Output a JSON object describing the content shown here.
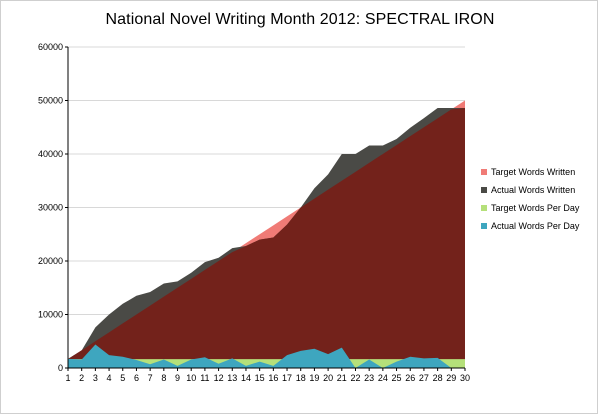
{
  "chart_data": {
    "type": "area",
    "title": "National Novel Writing Month 2012: SPECTRAL IRON",
    "xlabel": "",
    "ylabel": "",
    "x": [
      1,
      2,
      3,
      4,
      5,
      6,
      7,
      8,
      9,
      10,
      11,
      12,
      13,
      14,
      15,
      16,
      17,
      18,
      19,
      20,
      21,
      22,
      23,
      24,
      25,
      26,
      27,
      28,
      29,
      30
    ],
    "ylim": [
      0,
      60000
    ],
    "yticks": [
      0,
      10000,
      20000,
      30000,
      40000,
      50000,
      60000
    ],
    "ytick_labels": [
      "0",
      "10000",
      "20000",
      "30000",
      "40000",
      "50000",
      "60000"
    ],
    "legend_position": "right",
    "grid": true,
    "series": [
      {
        "name": "Target Words Written",
        "color": "#f07b76",
        "values": [
          1667,
          3333,
          5000,
          6667,
          8333,
          10000,
          11667,
          13333,
          15000,
          16667,
          18333,
          20000,
          21667,
          23333,
          25000,
          26667,
          28333,
          30000,
          31667,
          33333,
          35000,
          36667,
          38333,
          40000,
          41667,
          43333,
          45000,
          46667,
          48333,
          50000
        ]
      },
      {
        "name": "Actual Words Written",
        "color": "#4a4a46",
        "values": [
          1700,
          3300,
          7600,
          10000,
          12000,
          13500,
          14200,
          15800,
          16200,
          17800,
          19800,
          20600,
          22400,
          22800,
          24000,
          24400,
          26800,
          30000,
          33600,
          36200,
          40000,
          40000,
          41600,
          41600,
          42800,
          44900,
          46700,
          48600,
          48600,
          48600
        ]
      },
      {
        "name": "Target Words Per Day",
        "color": "#b5e07a",
        "values": [
          1667,
          1667,
          1667,
          1667,
          1667,
          1667,
          1667,
          1667,
          1667,
          1667,
          1667,
          1667,
          1667,
          1667,
          1667,
          1667,
          1667,
          1667,
          1667,
          1667,
          1667,
          1667,
          1667,
          1667,
          1667,
          1667,
          1667,
          1667,
          1667,
          1667
        ]
      },
      {
        "name": "Actual Words Per Day",
        "color": "#3ea6bf",
        "values": [
          1700,
          1600,
          4400,
          2400,
          2100,
          1500,
          700,
          1600,
          400,
          1600,
          2000,
          800,
          1800,
          400,
          1200,
          400,
          2400,
          3200,
          3600,
          2600,
          3800,
          0,
          1600,
          0,
          1200,
          2100,
          1800,
          1900,
          0,
          0
        ]
      }
    ]
  }
}
